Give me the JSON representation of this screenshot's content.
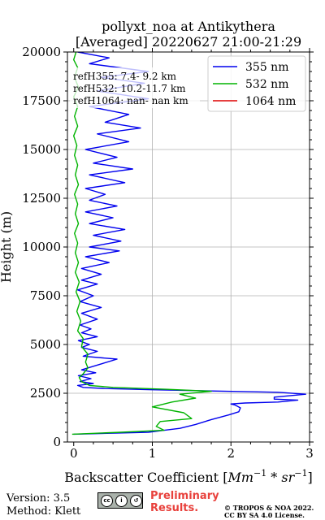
{
  "chart_data": {
    "type": "line",
    "title_line1": "pollyxt_noa at Antikythera",
    "title_line2": "[Averaged] 20220627 21:00-21:29",
    "xlabel_text": "Backscatter Coefficient [",
    "xlabel_math": "Mm",
    "xlabel_sup1": "−1",
    "xlabel_mid": " * sr",
    "xlabel_sup2": "−1",
    "xlabel_end": "]",
    "ylabel": "Height (m)",
    "xlim": [
      -0.08,
      3.0
    ],
    "ylim": [
      0,
      20000
    ],
    "xticks": [
      0,
      1,
      2,
      3
    ],
    "xtick_labels": [
      "0",
      "1",
      "2",
      "3"
    ],
    "yticks": [
      0,
      2500,
      5000,
      7500,
      10000,
      12500,
      15000,
      17500,
      20000
    ],
    "ytick_labels": [
      "0",
      "2500",
      "5000",
      "7500",
      "10000",
      "12500",
      "15000",
      "17500",
      "20000"
    ],
    "grid": true,
    "legend_position": "top-right",
    "annotations": [
      "refH355:  7.4- 9.2 km",
      "refH532: 10.2-11.7 km",
      "refH1064:  nan- nan km"
    ],
    "series": [
      {
        "name": "355 nm",
        "color": "#0000ee",
        "points": [
          [
            0.0,
            400
          ],
          [
            0.95,
            500
          ],
          [
            1.15,
            600
          ],
          [
            1.35,
            700
          ],
          [
            1.55,
            900
          ],
          [
            1.75,
            1150
          ],
          [
            1.98,
            1400
          ],
          [
            2.1,
            1550
          ],
          [
            2.12,
            1750
          ],
          [
            2.05,
            1900
          ],
          [
            2.0,
            1950
          ],
          [
            2.18,
            2000
          ],
          [
            2.6,
            2050
          ],
          [
            2.85,
            2150
          ],
          [
            2.55,
            2200
          ],
          [
            2.55,
            2300
          ],
          [
            2.95,
            2450
          ],
          [
            2.6,
            2550
          ],
          [
            1.0,
            2680
          ],
          [
            0.4,
            2740
          ],
          [
            0.12,
            2800
          ],
          [
            0.05,
            2900
          ],
          [
            0.25,
            3000
          ],
          [
            0.08,
            3100
          ],
          [
            0.22,
            3250
          ],
          [
            0.06,
            3400
          ],
          [
            0.28,
            3550
          ],
          [
            0.1,
            3700
          ],
          [
            0.55,
            4250
          ],
          [
            0.12,
            4400
          ],
          [
            0.3,
            4650
          ],
          [
            0.1,
            4850
          ],
          [
            0.2,
            5000
          ],
          [
            0.06,
            5200
          ],
          [
            0.3,
            5400
          ],
          [
            0.1,
            5600
          ],
          [
            0.22,
            5800
          ],
          [
            0.08,
            6000
          ],
          [
            0.3,
            6300
          ],
          [
            0.1,
            6600
          ],
          [
            0.35,
            6900
          ],
          [
            0.08,
            7200
          ],
          [
            0.25,
            7500
          ],
          [
            0.05,
            7800
          ],
          [
            0.3,
            8100
          ],
          [
            0.1,
            8300
          ],
          [
            0.35,
            8600
          ],
          [
            0.1,
            8900
          ],
          [
            0.45,
            9200
          ],
          [
            0.15,
            9500
          ],
          [
            0.58,
            9800
          ],
          [
            0.2,
            10000
          ],
          [
            0.6,
            10300
          ],
          [
            0.25,
            10600
          ],
          [
            0.65,
            10900
          ],
          [
            0.2,
            11200
          ],
          [
            0.5,
            11500
          ],
          [
            0.15,
            11800
          ],
          [
            0.55,
            12100
          ],
          [
            0.2,
            12400
          ],
          [
            0.4,
            12700
          ],
          [
            0.15,
            13000
          ],
          [
            0.65,
            13300
          ],
          [
            0.2,
            13700
          ],
          [
            0.75,
            14000
          ],
          [
            0.25,
            14300
          ],
          [
            0.55,
            14600
          ],
          [
            0.15,
            15000
          ],
          [
            0.7,
            15400
          ],
          [
            0.3,
            15800
          ],
          [
            0.85,
            16100
          ],
          [
            0.4,
            16400
          ],
          [
            0.7,
            16800
          ],
          [
            0.2,
            17200
          ],
          [
            0.95,
            17600
          ],
          [
            0.3,
            18000
          ],
          [
            0.9,
            18400
          ],
          [
            0.35,
            18700
          ],
          [
            0.95,
            19000
          ],
          [
            0.2,
            19400
          ],
          [
            0.45,
            19700
          ],
          [
            0.05,
            20000
          ]
        ]
      },
      {
        "name": "532 nm",
        "color": "#00b300",
        "points": [
          [
            -0.02,
            400
          ],
          [
            0.6,
            500
          ],
          [
            1.15,
            600
          ],
          [
            1.05,
            800
          ],
          [
            1.1,
            1050
          ],
          [
            1.5,
            1200
          ],
          [
            1.4,
            1500
          ],
          [
            1.0,
            1800
          ],
          [
            1.25,
            2050
          ],
          [
            1.55,
            2250
          ],
          [
            1.35,
            2450
          ],
          [
            1.75,
            2600
          ],
          [
            1.2,
            2700
          ],
          [
            0.5,
            2800
          ],
          [
            0.2,
            2900
          ],
          [
            0.1,
            3100
          ],
          [
            0.07,
            3300
          ],
          [
            0.12,
            3500
          ],
          [
            0.18,
            3800
          ],
          [
            0.15,
            4100
          ],
          [
            0.18,
            4500
          ],
          [
            0.1,
            4900
          ],
          [
            0.12,
            5300
          ],
          [
            0.05,
            5700
          ],
          [
            0.09,
            6200
          ],
          [
            0.04,
            6700
          ],
          [
            0.08,
            7200
          ],
          [
            0.03,
            7700
          ],
          [
            0.07,
            8200
          ],
          [
            0.02,
            8700
          ],
          [
            0.06,
            9200
          ],
          [
            0.02,
            9700
          ],
          [
            0.05,
            10200
          ],
          [
            0.01,
            10700
          ],
          [
            0.06,
            11200
          ],
          [
            0.02,
            11700
          ],
          [
            0.05,
            12200
          ],
          [
            0.01,
            12700
          ],
          [
            0.06,
            13200
          ],
          [
            0.02,
            13700
          ],
          [
            0.05,
            14200
          ],
          [
            0.01,
            14700
          ],
          [
            0.04,
            15200
          ],
          [
            0.0,
            15700
          ],
          [
            0.05,
            16200
          ],
          [
            0.01,
            16700
          ],
          [
            0.05,
            17200
          ],
          [
            0.0,
            17700
          ],
          [
            0.06,
            18200
          ],
          [
            0.01,
            18700
          ],
          [
            0.05,
            19200
          ],
          [
            0.0,
            19600
          ],
          [
            0.03,
            20000
          ]
        ]
      },
      {
        "name": "1064 nm",
        "color": "#dd0000",
        "points": []
      }
    ]
  },
  "footer": {
    "version": "Version: 3.5",
    "method": "Method: Klett",
    "preliminary_line1": "Preliminary",
    "preliminary_line2": "Results.",
    "copyright_line1": "© TROPOS & NOA 2022.",
    "copyright_line2": "CC BY SA 4.0 License.",
    "license_badge": "cc-by-sa-icon"
  }
}
